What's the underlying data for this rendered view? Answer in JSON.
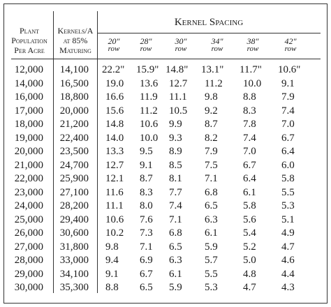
{
  "headers": {
    "population_line1": "Plant",
    "population_line2": "Population",
    "population_line3": "Per Acre",
    "kernels_line1": "Kernels/A",
    "kernels_line2": "at 85%",
    "kernels_line3": "Maturing",
    "spacing": "Kernel Spacing"
  },
  "row_widths": [
    {
      "width": "20\"",
      "unit": "row"
    },
    {
      "width": "28\"",
      "unit": "row"
    },
    {
      "width": "30\"",
      "unit": "row"
    },
    {
      "width": "34\"",
      "unit": "row"
    },
    {
      "width": "38\"",
      "unit": "row"
    },
    {
      "width": "42\"",
      "unit": "row"
    }
  ],
  "rows": [
    {
      "population": "12,000",
      "kernels": "14,100",
      "spacing": [
        "22.2\"",
        "15.9\"",
        "14.8\"",
        "13.1\"",
        "11.7\"",
        "10.6\""
      ]
    },
    {
      "population": "14,000",
      "kernels": "16,500",
      "spacing": [
        "19.0",
        "13.6",
        "12.7",
        "11.2",
        "10.0",
        "9.1"
      ]
    },
    {
      "population": "16,000",
      "kernels": "18,800",
      "spacing": [
        "16.6",
        "11.9",
        "11.1",
        "9.8",
        "8.8",
        "7.9"
      ]
    },
    {
      "population": "17,000",
      "kernels": "20,000",
      "spacing": [
        "15.6",
        "11.2",
        "10.5",
        "9.2",
        "8.3",
        "7.4"
      ]
    },
    {
      "population": "18,000",
      "kernels": "21,200",
      "spacing": [
        "14.8",
        "10.6",
        "9.9",
        "8.7",
        "7.8",
        "7.0"
      ]
    },
    {
      "population": "19,000",
      "kernels": "22,400",
      "spacing": [
        "14.0",
        "10.0",
        "9.3",
        "8.2",
        "7.4",
        "6.7"
      ]
    },
    {
      "population": "20,000",
      "kernels": "23,500",
      "spacing": [
        "13.3",
        "9.5",
        "8.9",
        "7.9",
        "7.0",
        "6.4"
      ]
    },
    {
      "population": "21,000",
      "kernels": "24,700",
      "spacing": [
        "12.7",
        "9.1",
        "8.5",
        "7.5",
        "6.7",
        "6.0"
      ]
    },
    {
      "population": "22,000",
      "kernels": "25,900",
      "spacing": [
        "12.1",
        "8.7",
        "8.1",
        "7.1",
        "6.4",
        "5.8"
      ]
    },
    {
      "population": "23,000",
      "kernels": "27,100",
      "spacing": [
        "11.6",
        "8.3",
        "7.7",
        "6.8",
        "6.1",
        "5.5"
      ]
    },
    {
      "population": "24,000",
      "kernels": "28,200",
      "spacing": [
        "11.1",
        "8.0",
        "7.4",
        "6.5",
        "5.8",
        "5.3"
      ]
    },
    {
      "population": "25,000",
      "kernels": "29,400",
      "spacing": [
        "10.6",
        "7.6",
        "7.1",
        "6.3",
        "5.6",
        "5.1"
      ]
    },
    {
      "population": "26,000",
      "kernels": "30,600",
      "spacing": [
        "10.2",
        "7.3",
        "6.8",
        "6.1",
        "5.4",
        "4.9"
      ]
    },
    {
      "population": "27,000",
      "kernels": "31,800",
      "spacing": [
        "9.8",
        "7.1",
        "6.5",
        "5.9",
        "5.2",
        "4.7"
      ]
    },
    {
      "population": "28,000",
      "kernels": "33,000",
      "spacing": [
        "9.4",
        "6.9",
        "6.3",
        "5.7",
        "5.0",
        "4.6"
      ]
    },
    {
      "population": "29,000",
      "kernels": "34,100",
      "spacing": [
        "9.1",
        "6.7",
        "6.1",
        "5.5",
        "4.8",
        "4.4"
      ]
    },
    {
      "population": "30,000",
      "kernels": "35,300",
      "spacing": [
        "8.8",
        "6.5",
        "5.9",
        "5.3",
        "4.7",
        "4.3"
      ]
    }
  ]
}
